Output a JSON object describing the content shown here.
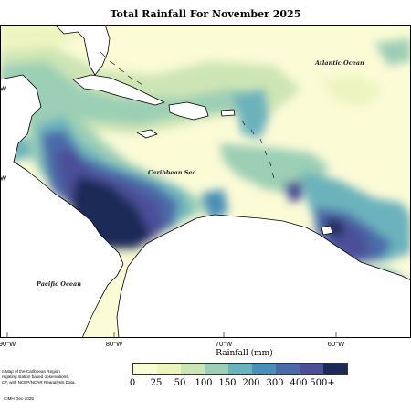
{
  "title": "Total Rainfall For November 2025",
  "labels": {
    "atlantic": "Atlantic Ocean",
    "caribbean": "Caribbean Sea",
    "pacific": "Pacific Ocean"
  },
  "longitude_labels": [
    "90°W",
    "80°W",
    "70°W",
    "60°W"
  ],
  "latitude_labels": [
    "W",
    "W"
  ],
  "legend": {
    "title": "Rainfall (mm)",
    "ticks": [
      "0",
      "25",
      "50",
      "100",
      "150",
      "200",
      "300",
      "400",
      "500+"
    ],
    "colors": [
      "#fbfbd6",
      "#edf4c0",
      "#cde5b4",
      "#9ccfb5",
      "#6cb2bc",
      "#4a8fb7",
      "#4b6aa8",
      "#4b4f98",
      "#1c2a58"
    ]
  },
  "note": [
    "n Map of the Caribbean Region",
    "regating station based observations,",
    "CF, with NCEP/NCAR Reanalysis Data."
  ],
  "copyright": "CIMH Dec-2025",
  "land_color": "#ffffff",
  "coast_color": "#000000"
}
